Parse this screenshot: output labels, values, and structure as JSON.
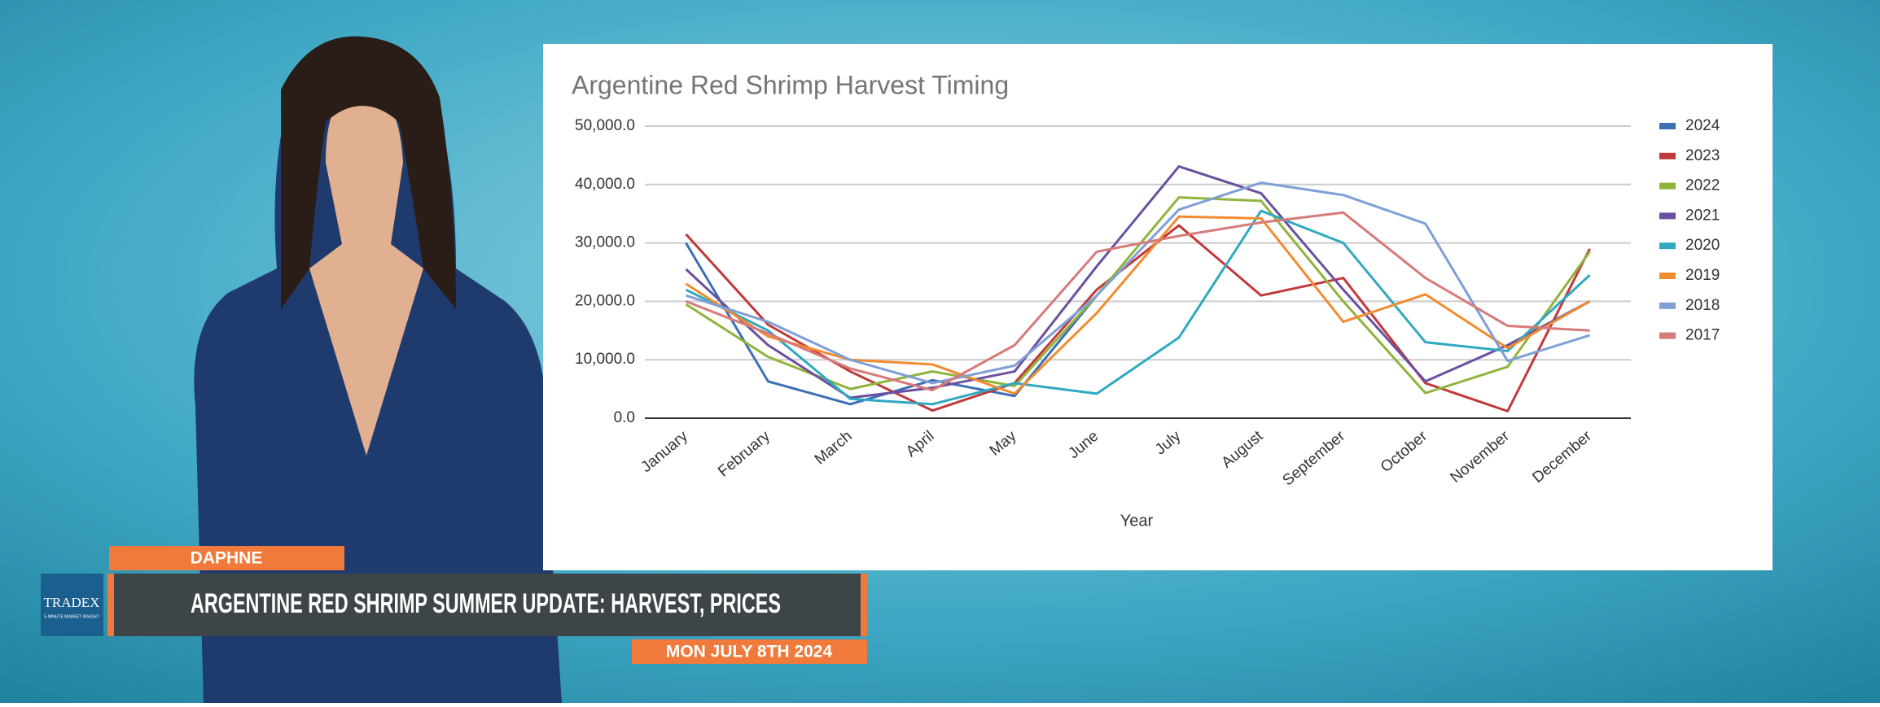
{
  "chart_data": {
    "type": "line",
    "title": "Argentine Red Shrimp Harvest Timing",
    "xlabel": "Year",
    "categories": [
      "January",
      "February",
      "March",
      "April",
      "May",
      "June",
      "July",
      "August",
      "September",
      "October",
      "November",
      "December"
    ],
    "ylim": [
      0,
      50000
    ],
    "yticks": [
      {
        "value": 0,
        "label": "0.0"
      },
      {
        "value": 10000,
        "label": "10,000.0"
      },
      {
        "value": 20000,
        "label": "20,000.0"
      },
      {
        "value": 30000,
        "label": "30,000.0"
      },
      {
        "value": 40000,
        "label": "40,000.0"
      },
      {
        "value": 50000,
        "label": "50,000.0"
      }
    ],
    "grid": true,
    "legend": "right",
    "series": [
      {
        "name": "2024",
        "color": "#3d6fb4",
        "values": [
          30000,
          6300,
          2400,
          6500,
          3800,
          21000,
          null,
          null,
          null,
          null,
          null,
          null
        ]
      },
      {
        "name": "2023",
        "color": "#c0393b",
        "values": [
          31500,
          16000,
          8000,
          1300,
          6000,
          22000,
          33000,
          21000,
          24000,
          6000,
          1200,
          29000
        ]
      },
      {
        "name": "2022",
        "color": "#8fb43c",
        "values": [
          19500,
          10500,
          5000,
          8000,
          5500,
          21000,
          37800,
          37200,
          20000,
          4300,
          8800,
          28500
        ]
      },
      {
        "name": "2021",
        "color": "#6b4fa0",
        "values": [
          25500,
          12500,
          3500,
          5200,
          8000,
          26000,
          43100,
          38500,
          22000,
          6300,
          12500,
          20000
        ]
      },
      {
        "name": "2020",
        "color": "#2fa8c1",
        "values": [
          22000,
          15000,
          3300,
          2400,
          6000,
          4200,
          13800,
          35500,
          30000,
          13000,
          11500,
          24500
        ]
      },
      {
        "name": "2019",
        "color": "#f28b30",
        "values": [
          23000,
          14000,
          10000,
          9200,
          4200,
          18000,
          34500,
          34200,
          16500,
          21200,
          12000,
          20000
        ]
      },
      {
        "name": "2018",
        "color": "#7f9fd6",
        "values": [
          21000,
          16500,
          10000,
          6000,
          9000,
          21000,
          35700,
          40300,
          38200,
          33300,
          9800,
          14200
        ]
      },
      {
        "name": "2017",
        "color": "#d67a7a",
        "values": [
          20000,
          14500,
          8500,
          4800,
          12500,
          28500,
          31200,
          33500,
          35200,
          24000,
          15800,
          15000
        ]
      }
    ]
  },
  "broadcast": {
    "presenter": "DAPHNE",
    "headline": "ARGENTINE RED SHRIMP SUMMER UPDATE: HARVEST, PRICES",
    "date": "MON JULY 8TH 2024",
    "logo": {
      "name": "TRADEX",
      "tagline": "5-MINUTE MARKET INSIGHT"
    }
  }
}
